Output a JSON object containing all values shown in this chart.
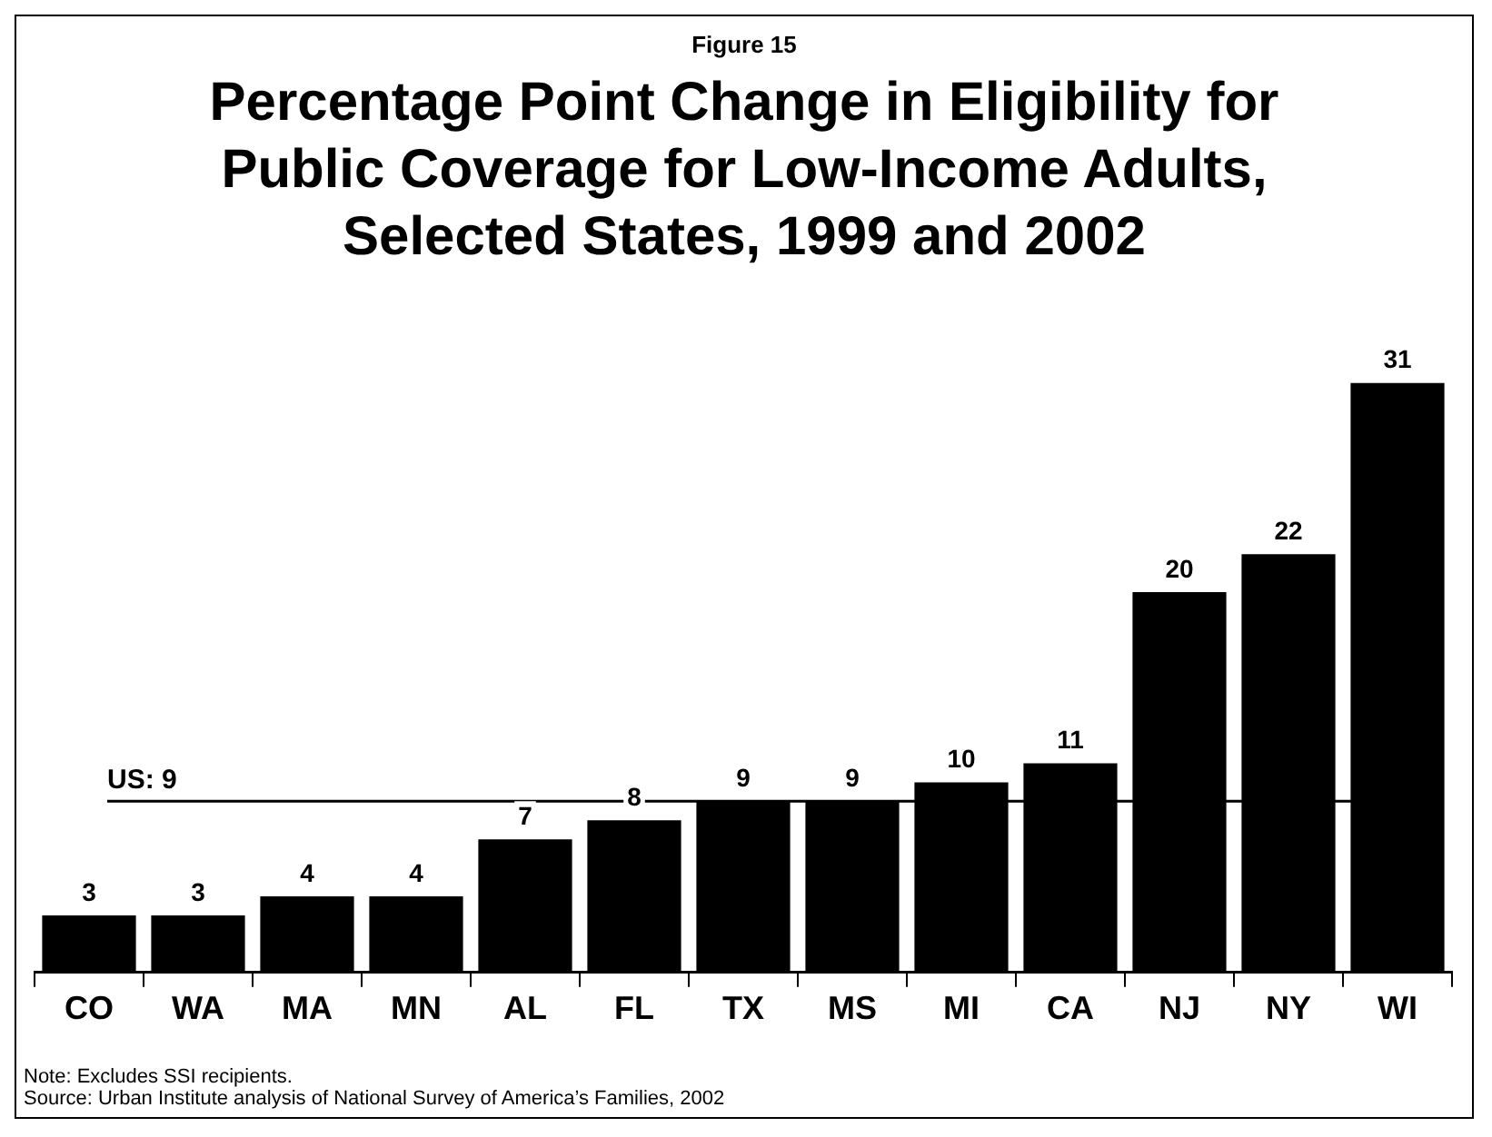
{
  "chart_data": {
    "type": "bar",
    "subtitle": "Figure 15",
    "title": "Percentage Point Change in Eligibility for Public Coverage for Low-Income Adults, Selected States, 1999 and 2002",
    "categories": [
      "CO",
      "WA",
      "MA",
      "MN",
      "AL",
      "FL",
      "TX",
      "MS",
      "MI",
      "CA",
      "NJ",
      "NY",
      "WI"
    ],
    "values": [
      3,
      3,
      4,
      4,
      7,
      8,
      9,
      9,
      10,
      11,
      20,
      22,
      31
    ],
    "color": "#000000",
    "data_labels": true,
    "tick_labels": "x",
    "grid": false,
    "legend": false,
    "ref_lines": [
      {
        "axis": "y",
        "value": 9,
        "label": "US: 9",
        "color": "#000000"
      }
    ],
    "annotations": [
      "Note: Excludes SSI recipients.",
      "Source: Urban Institute analysis of National Survey of America’s Families, 2002"
    ]
  }
}
